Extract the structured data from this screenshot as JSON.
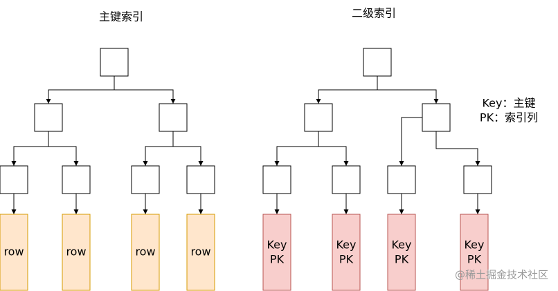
{
  "left_tree": {
    "title": "主键索引",
    "leaves": [
      "row",
      "row",
      "row",
      "row"
    ]
  },
  "right_tree": {
    "title": "二级索引",
    "leaves": [
      [
        "Key",
        "PK"
      ],
      [
        "Key",
        "PK"
      ],
      [
        "Key",
        "PK"
      ],
      [
        "Key",
        "PK"
      ]
    ]
  },
  "legend": [
    "Key：主键",
    "PK：索引列"
  ],
  "watermark": "@稀土掘金技术社区"
}
